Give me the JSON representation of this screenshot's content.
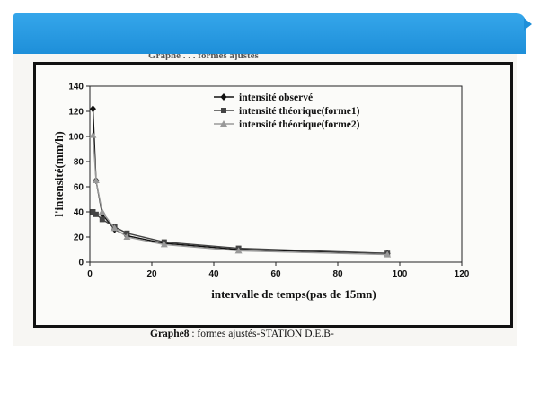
{
  "slide": {
    "banner_color": "#2196e3"
  },
  "figure": {
    "header_text": "Graphe . . . formes ajustés",
    "caption_label": "Graphe8",
    "caption_text": " : formes ajustés-STATION D.E.B-"
  },
  "chart_data": {
    "type": "line",
    "title": "",
    "xlabel": "intervalle de temps(pas de 15mn)",
    "ylabel": "l'intensité(mm/h)",
    "xlim": [
      0,
      120
    ],
    "ylim": [
      0,
      140
    ],
    "xticks": [
      0,
      20,
      40,
      60,
      80,
      100,
      120
    ],
    "yticks": [
      0,
      20,
      40,
      60,
      80,
      100,
      120,
      140
    ],
    "grid": false,
    "legend_position": "top-right",
    "series": [
      {
        "name": "intensité observé",
        "marker": "diamond",
        "color": "#111111",
        "x": [
          1,
          2,
          4,
          8,
          12,
          24,
          48,
          96
        ],
        "y": [
          122,
          65,
          38,
          26,
          21,
          15,
          10,
          7
        ]
      },
      {
        "name": "intensité théorique(forme1)",
        "marker": "square",
        "color": "#444444",
        "x": [
          1,
          2,
          4,
          8,
          12,
          24,
          48,
          96
        ],
        "y": [
          40,
          38,
          34,
          28,
          23,
          16,
          11,
          7
        ]
      },
      {
        "name": "intensité théorique(forme2)",
        "marker": "triangle",
        "color": "#999999",
        "x": [
          1,
          2,
          4,
          8,
          12,
          24,
          48,
          96
        ],
        "y": [
          101,
          65,
          40,
          27,
          20,
          14,
          9,
          6
        ]
      }
    ]
  }
}
